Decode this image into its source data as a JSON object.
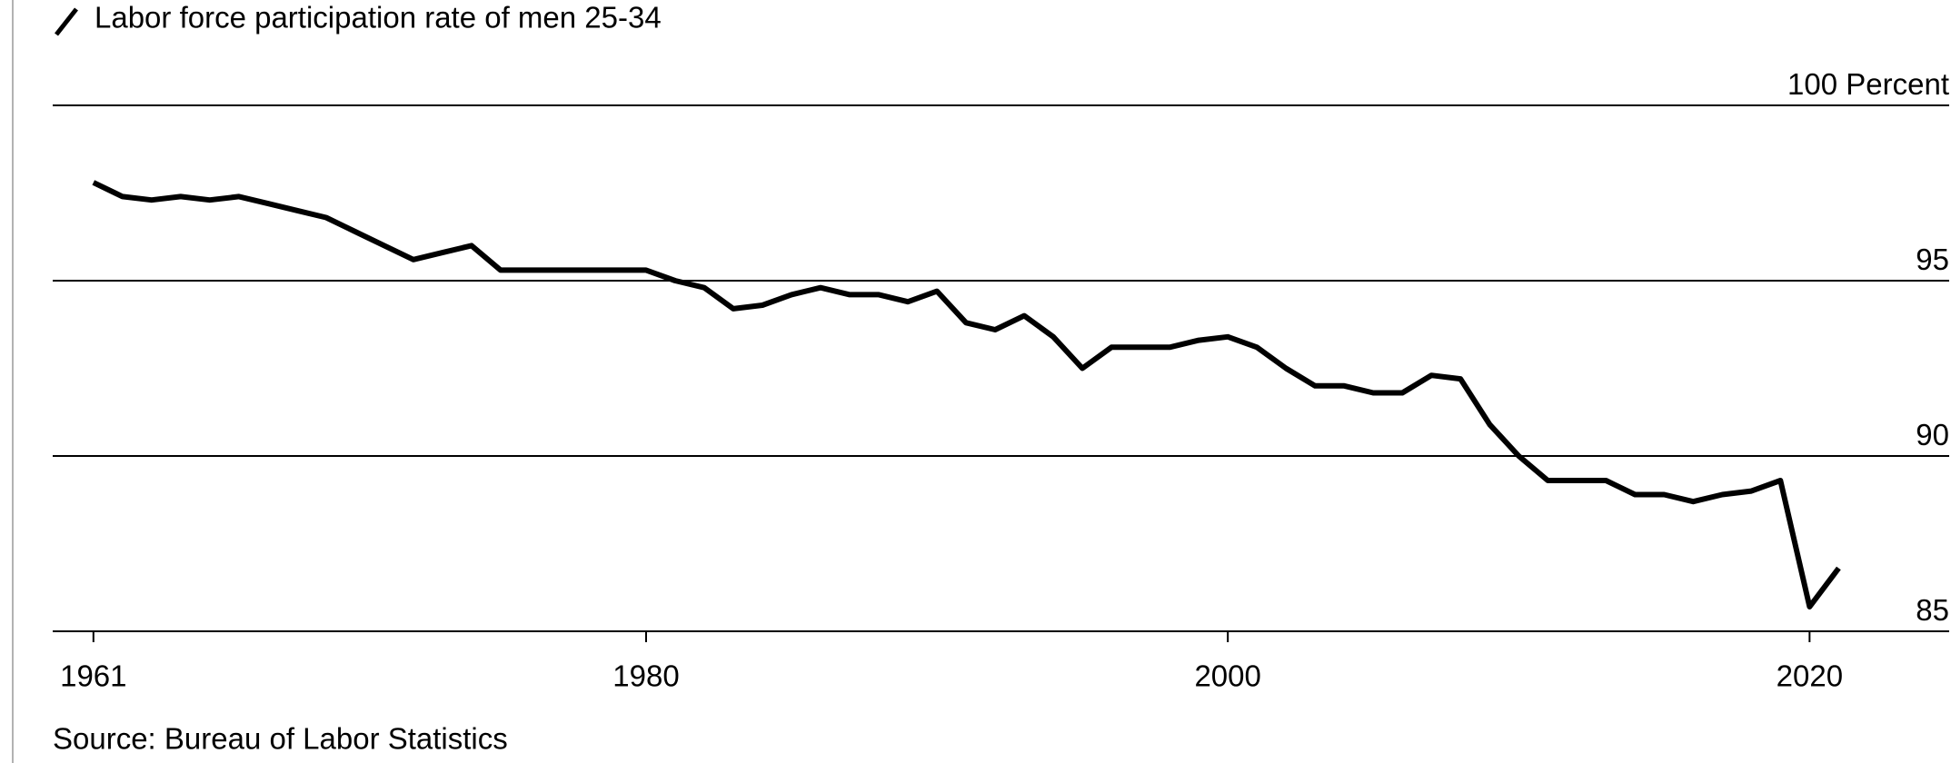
{
  "chart_data": {
    "type": "line",
    "source": "Source: Bureau of Labor Statistics",
    "x": [
      1961,
      1962,
      1963,
      1964,
      1965,
      1966,
      1967,
      1968,
      1969,
      1970,
      1971,
      1972,
      1973,
      1974,
      1975,
      1976,
      1977,
      1978,
      1979,
      1980,
      1981,
      1982,
      1983,
      1984,
      1985,
      1986,
      1987,
      1988,
      1989,
      1990,
      1991,
      1992,
      1993,
      1994,
      1995,
      1996,
      1997,
      1998,
      1999,
      2000,
      2001,
      2002,
      2003,
      2004,
      2005,
      2006,
      2007,
      2008,
      2009,
      2010,
      2011,
      2012,
      2013,
      2014,
      2015,
      2016,
      2017,
      2018,
      2019,
      2020,
      2021
    ],
    "series": [
      {
        "name": "Labor force participation rate of men 25-34",
        "color": "#000000",
        "values": [
          97.8,
          97.4,
          97.3,
          97.4,
          97.3,
          97.4,
          97.2,
          97.0,
          96.8,
          96.4,
          96.0,
          95.6,
          95.8,
          96.0,
          95.3,
          95.3,
          95.3,
          95.3,
          95.3,
          95.3,
          95.0,
          94.8,
          94.2,
          94.3,
          94.6,
          94.8,
          94.6,
          94.6,
          94.4,
          94.7,
          93.8,
          93.6,
          94.0,
          93.4,
          92.5,
          93.1,
          93.1,
          93.1,
          93.3,
          93.4,
          93.1,
          92.5,
          92.0,
          92.0,
          91.8,
          91.8,
          92.3,
          92.2,
          90.9,
          90.0,
          89.3,
          89.3,
          89.3,
          88.9,
          88.9,
          88.7,
          88.9,
          89.0,
          89.3,
          85.7,
          86.8
        ]
      }
    ],
    "xlim": [
      1959.6,
      2024.8
    ],
    "xticks": [
      1961,
      1980,
      2000,
      2020
    ],
    "ylim": [
      85,
      100
    ],
    "yticks": [
      85,
      90,
      95,
      {
        "value": 100,
        "label": "100 Percent"
      }
    ],
    "grid": true
  }
}
